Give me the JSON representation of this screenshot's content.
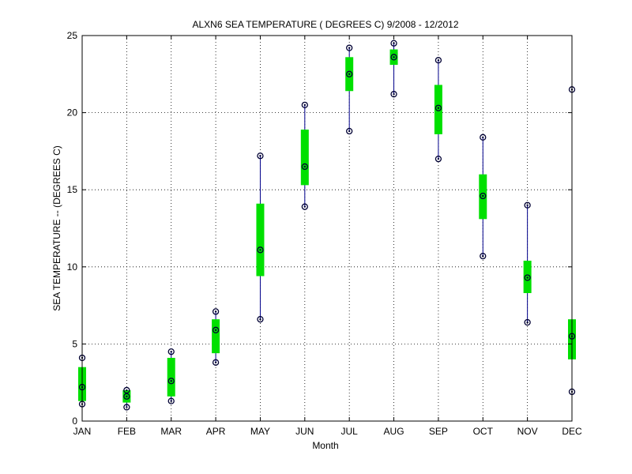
{
  "chart_data": {
    "type": "box",
    "title": "ALXN6  SEA TEMPERATURE ( DEGREES C) 9/2008 - 12/2012",
    "xlabel": "Month",
    "ylabel": "SEA TEMPERATURE -- (DEGREES C)",
    "categories": [
      "JAN",
      "FEB",
      "MAR",
      "APR",
      "MAY",
      "JUN",
      "JUL",
      "AUG",
      "SEP",
      "OCT",
      "NOV",
      "DEC"
    ],
    "ylim": [
      0,
      25
    ],
    "yticks": [
      0,
      5,
      10,
      15,
      20,
      25
    ],
    "grid": true,
    "series": [
      {
        "min": [
          1.1,
          0.9,
          1.3,
          3.8,
          6.6,
          13.9,
          18.8,
          21.2,
          17.0,
          10.7,
          6.4,
          1.9
        ],
        "q1": [
          1.3,
          1.2,
          1.6,
          4.4,
          9.4,
          15.3,
          21.4,
          23.1,
          18.6,
          13.1,
          8.3,
          4.0
        ],
        "median": [
          2.2,
          1.6,
          2.6,
          5.9,
          11.1,
          16.5,
          22.5,
          23.6,
          20.3,
          14.6,
          9.3,
          5.5
        ],
        "q3": [
          3.5,
          2.0,
          4.1,
          6.6,
          14.1,
          18.9,
          23.6,
          24.1,
          21.8,
          16.0,
          10.4,
          6.6
        ],
        "max": [
          4.1,
          2.0,
          4.5,
          7.1,
          17.2,
          20.5,
          24.2,
          24.5,
          23.4,
          18.4,
          14.0,
          21.5
        ]
      }
    ],
    "colors": {
      "whisker": "#00008b",
      "box": "#00e000",
      "marker": "#000033",
      "grid": "#000000",
      "axis": "#000000"
    }
  }
}
